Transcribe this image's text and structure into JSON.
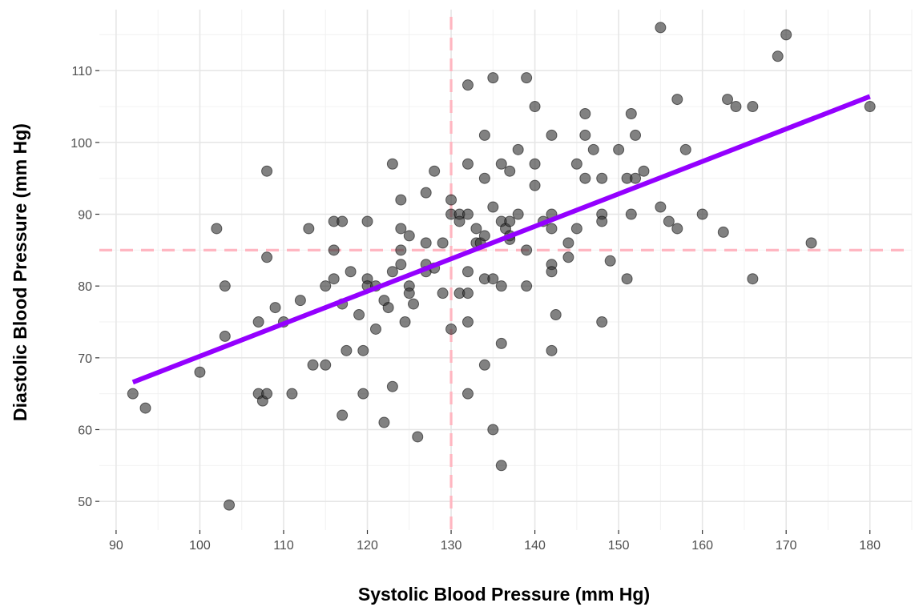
{
  "chart_data": {
    "type": "scatter",
    "title": "",
    "xlabel": "Systolic Blood Pressure (mm Hg)",
    "ylabel": "Diastolic Blood Pressure (mm Hg)",
    "xlim": [
      88,
      185
    ],
    "ylim": [
      46,
      118.5
    ],
    "x_ticks": [
      90,
      100,
      110,
      120,
      130,
      140,
      150,
      160,
      170,
      180
    ],
    "y_ticks": [
      50,
      60,
      70,
      80,
      90,
      100,
      110
    ],
    "grid": true,
    "point_color": "#333333",
    "point_opacity": 0.62,
    "reference_lines": {
      "vertical_x": 130,
      "horizontal_y": 85,
      "color": "#ffb6c1",
      "style": "dashed"
    },
    "regression_line": {
      "color": "#9400ff",
      "x": [
        92,
        180
      ],
      "y": [
        66.6,
        106.4
      ]
    },
    "points": [
      [
        92,
        65
      ],
      [
        93.5,
        63
      ],
      [
        100,
        68
      ],
      [
        102,
        88
      ],
      [
        103,
        80
      ],
      [
        103,
        73
      ],
      [
        103.5,
        49.5
      ],
      [
        107,
        75
      ],
      [
        107,
        65
      ],
      [
        107.5,
        64
      ],
      [
        108,
        65
      ],
      [
        108,
        96
      ],
      [
        108,
        84
      ],
      [
        109,
        77
      ],
      [
        110,
        75
      ],
      [
        111,
        65
      ],
      [
        112,
        78
      ],
      [
        113,
        88
      ],
      [
        113.5,
        69
      ],
      [
        115,
        69
      ],
      [
        115,
        80
      ],
      [
        116,
        89
      ],
      [
        116,
        85
      ],
      [
        116,
        81
      ],
      [
        117,
        89
      ],
      [
        117,
        77.5
      ],
      [
        117,
        62
      ],
      [
        117.5,
        71
      ],
      [
        118,
        82
      ],
      [
        119,
        76
      ],
      [
        119.5,
        71
      ],
      [
        119.5,
        65
      ],
      [
        120,
        89
      ],
      [
        120,
        81
      ],
      [
        120,
        80
      ],
      [
        121,
        80
      ],
      [
        121,
        74
      ],
      [
        122,
        78
      ],
      [
        122,
        61
      ],
      [
        122.5,
        77
      ],
      [
        123,
        97
      ],
      [
        123,
        82
      ],
      [
        123,
        66
      ],
      [
        124,
        92
      ],
      [
        124,
        88
      ],
      [
        124,
        85
      ],
      [
        124,
        83
      ],
      [
        124.5,
        75
      ],
      [
        125,
        87
      ],
      [
        125,
        80
      ],
      [
        125,
        79
      ],
      [
        125.5,
        77.5
      ],
      [
        126,
        59
      ],
      [
        127,
        93
      ],
      [
        127,
        86
      ],
      [
        127,
        83
      ],
      [
        127,
        82
      ],
      [
        128,
        96
      ],
      [
        128,
        82.5
      ],
      [
        129,
        86
      ],
      [
        129,
        79
      ],
      [
        130,
        92
      ],
      [
        130,
        90
      ],
      [
        130,
        74
      ],
      [
        131,
        90
      ],
      [
        131,
        89
      ],
      [
        131,
        79
      ],
      [
        132,
        108
      ],
      [
        132,
        97
      ],
      [
        132,
        90
      ],
      [
        132,
        82
      ],
      [
        132,
        79
      ],
      [
        132,
        75
      ],
      [
        132,
        65
      ],
      [
        133,
        88
      ],
      [
        133,
        86
      ],
      [
        133.5,
        86
      ],
      [
        134,
        101
      ],
      [
        134,
        95
      ],
      [
        134,
        87
      ],
      [
        134,
        81
      ],
      [
        134,
        69
      ],
      [
        135,
        109
      ],
      [
        135,
        91
      ],
      [
        135,
        81
      ],
      [
        135,
        60
      ],
      [
        136,
        97
      ],
      [
        136,
        89
      ],
      [
        136,
        80
      ],
      [
        136,
        72
      ],
      [
        136,
        55
      ],
      [
        136.5,
        88
      ],
      [
        137,
        96
      ],
      [
        137,
        89
      ],
      [
        137,
        87
      ],
      [
        137,
        86.5
      ],
      [
        138,
        99
      ],
      [
        138,
        90
      ],
      [
        139,
        109
      ],
      [
        139,
        85
      ],
      [
        139,
        80
      ],
      [
        140,
        105
      ],
      [
        140,
        97
      ],
      [
        140,
        94
      ],
      [
        141,
        89
      ],
      [
        142,
        101
      ],
      [
        142,
        90
      ],
      [
        142,
        88
      ],
      [
        142,
        83
      ],
      [
        142,
        82
      ],
      [
        142,
        71
      ],
      [
        142.5,
        76
      ],
      [
        144,
        86
      ],
      [
        144,
        84
      ],
      [
        145,
        97
      ],
      [
        145,
        88
      ],
      [
        146,
        104
      ],
      [
        146,
        101
      ],
      [
        146,
        95
      ],
      [
        147,
        99
      ],
      [
        148,
        95
      ],
      [
        148,
        90
      ],
      [
        148,
        89
      ],
      [
        148,
        75
      ],
      [
        149,
        83.5
      ],
      [
        150,
        99
      ],
      [
        151,
        95
      ],
      [
        151,
        81
      ],
      [
        151.5,
        104
      ],
      [
        151.5,
        90
      ],
      [
        152,
        101
      ],
      [
        152,
        95
      ],
      [
        153,
        96
      ],
      [
        155,
        116
      ],
      [
        155,
        91
      ],
      [
        156,
        89
      ],
      [
        157,
        106
      ],
      [
        157,
        88
      ],
      [
        158,
        99
      ],
      [
        160,
        90
      ],
      [
        162.5,
        87.5
      ],
      [
        163,
        106
      ],
      [
        164,
        105
      ],
      [
        166,
        105
      ],
      [
        166,
        81
      ],
      [
        169,
        112
      ],
      [
        170,
        115
      ],
      [
        173,
        86
      ],
      [
        180,
        105
      ]
    ]
  }
}
